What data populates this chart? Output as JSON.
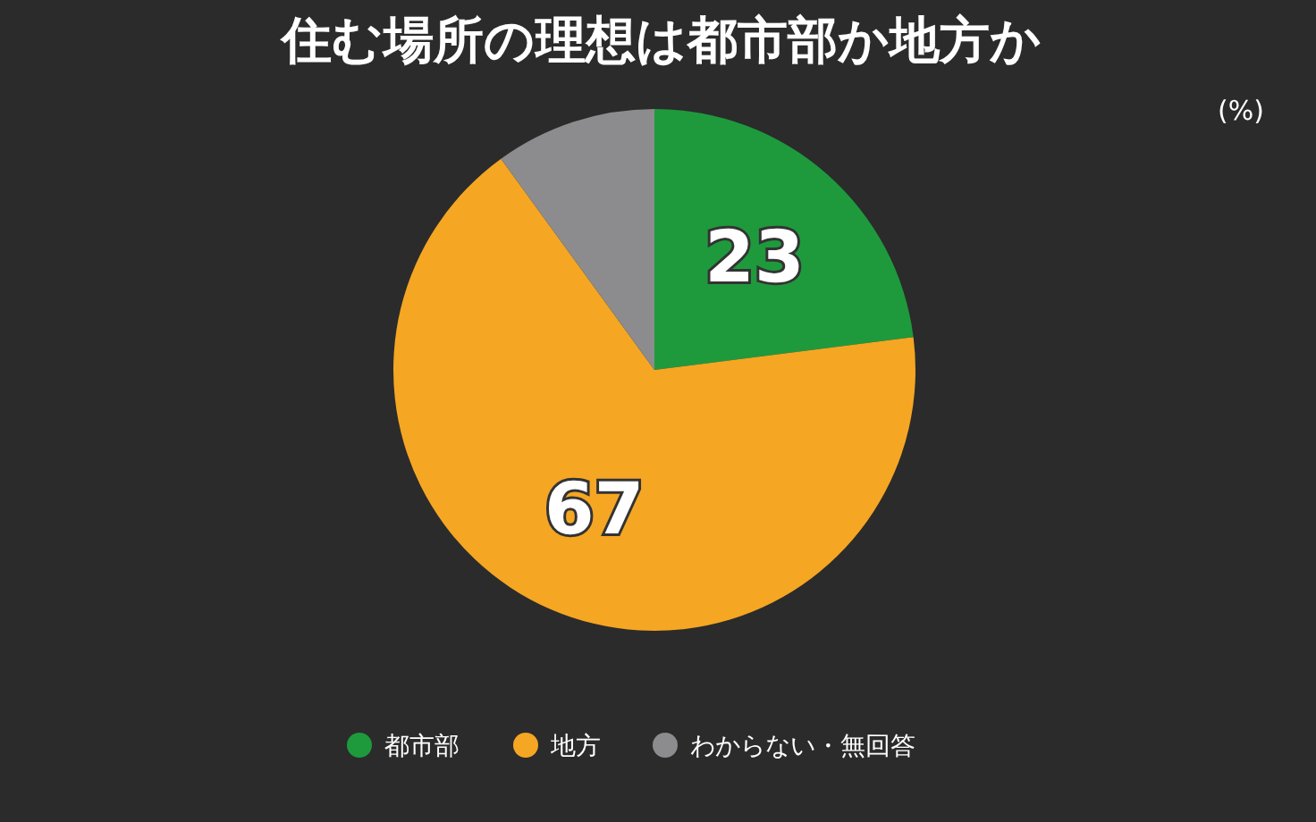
{
  "chart_data": {
    "type": "pie",
    "title": "住む場所の理想は都市部か地方か",
    "categories": [
      "都市部",
      "地方",
      "わからない・無回答"
    ],
    "values": [
      23,
      67,
      10
    ],
    "colors": [
      "#1e9a3c",
      "#f5a623",
      "#8c8c8e"
    ],
    "value_labels": [
      "23",
      "67",
      null
    ],
    "annotations": [
      "(%)"
    ],
    "legend": "bottom"
  }
}
